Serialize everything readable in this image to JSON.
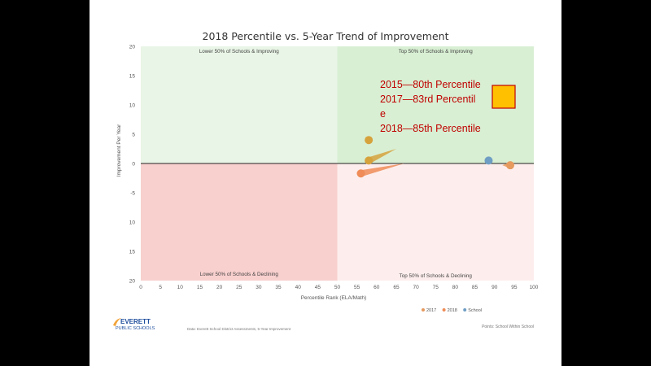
{
  "chart_data": {
    "type": "scatter",
    "title": "2018 Percentile vs. 5-Year Trend of Improvement",
    "xlabel": "Percentile Rank (ELA/Math)",
    "ylabel": "Improvement Per Year",
    "xlim": [
      0,
      100
    ],
    "ylim": [
      -20,
      20
    ],
    "x_ticks": [
      "0",
      "5",
      "10",
      "15",
      "20",
      "25",
      "30",
      "35",
      "40",
      "45",
      "50",
      "55",
      "60",
      "65",
      "70",
      "75",
      "80",
      "85",
      "90",
      "95",
      "100"
    ],
    "y_ticks": [
      {
        "value": 20,
        "label": "20"
      },
      {
        "value": 15,
        "label": "15"
      },
      {
        "value": 10,
        "label": "10"
      },
      {
        "value": 5,
        "label": "5"
      },
      {
        "value": 0,
        "label": "0"
      },
      {
        "value": -5,
        "label": "-5"
      },
      {
        "value": -10,
        "label": "10"
      },
      {
        "value": -15,
        "label": "15"
      },
      {
        "value": -20,
        "label": "20"
      }
    ],
    "quadrants": [
      {
        "label": "Lower 50% of Schools & Improving",
        "color": "#e9f5e6"
      },
      {
        "label": "Top 50% of Schools & Improving",
        "color": "#d8efd3"
      },
      {
        "label": "Lower 50% of Schools & Declining",
        "color": "#f8d0ce"
      },
      {
        "label": "Top 50% of Schools & Declining",
        "color": "#fdeeed"
      }
    ],
    "series": [
      {
        "name": "2017",
        "color": "#e69a5e",
        "points": [
          {
            "x": 94,
            "y": -0.3
          }
        ]
      },
      {
        "name": "2018",
        "color": "#ef8c57",
        "points": [
          {
            "x": 56,
            "y": -1.7
          }
        ]
      },
      {
        "name": "School",
        "color": "#6f9ec4",
        "points": [
          {
            "x": 88.5,
            "y": 0.5
          }
        ]
      }
    ],
    "trend_points": [
      {
        "x": 58,
        "y": 4,
        "color": "#d6a23c"
      },
      {
        "x": 58,
        "y": 0.5,
        "color": "#d6a23c"
      }
    ],
    "wedges": [
      {
        "x0": 56,
        "y0": -1.7,
        "x1": 67,
        "y1": 0,
        "color": "#ef8c57"
      },
      {
        "x0": 58,
        "y0": 0.5,
        "x1": 65,
        "y1": 2.5,
        "color": "#d6a23c"
      },
      {
        "x0": 94,
        "y0": -0.3,
        "x1": 92,
        "y1": -0.3,
        "color": "#e69a5e"
      }
    ]
  },
  "annotation": {
    "lines": [
      "2015—80th Percentile",
      "2017—83rd Percentil",
      "e",
      "2018—85th Percentile"
    ],
    "text_color": "#c00000",
    "box_color": "#ffc000"
  },
  "footer": {
    "logo_top": "EVERETT",
    "logo_bottom": "PUBLIC SCHOOLS",
    "logo_color": "#1f4e9c",
    "source_text": "Data: Everett School District Assessments, 5-Year Improvement",
    "right_text": "Points: School Within School"
  }
}
